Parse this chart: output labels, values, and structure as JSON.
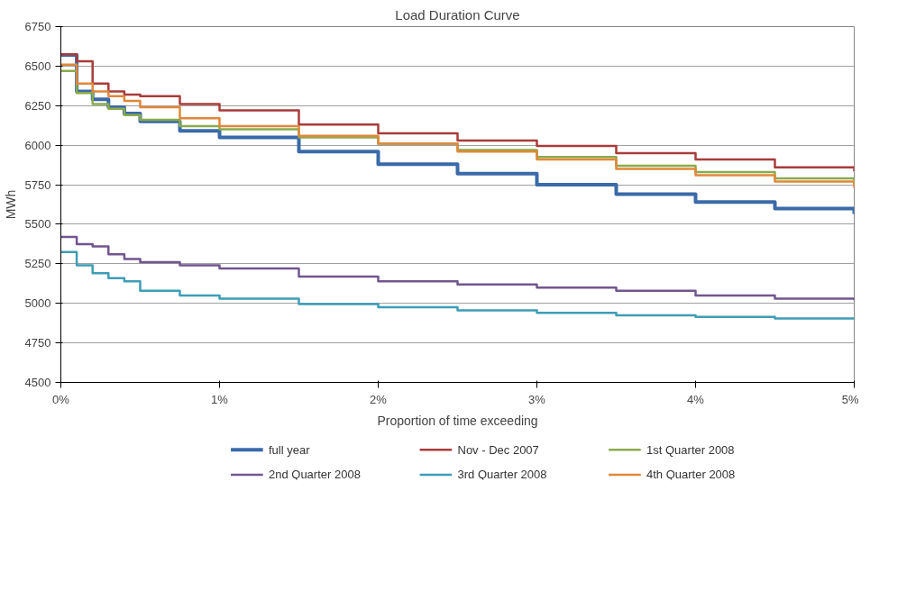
{
  "chart_data": {
    "type": "step",
    "title": "Load Duration Curve",
    "xlabel": "Proportion of time exceeding",
    "ylabel": "MWh",
    "x": [
      0,
      0.1,
      0.2,
      0.3,
      0.4,
      0.5,
      0.75,
      1,
      1.5,
      2,
      2.5,
      3,
      3.5,
      4,
      4.5,
      5
    ],
    "series": [
      {
        "name": "full year",
        "color": "#3a6aa8",
        "values": [
          6570,
          6340,
          6290,
          6240,
          6200,
          6150,
          6090,
          6050,
          5960,
          5880,
          5820,
          5750,
          5690,
          5640,
          5600,
          5565
        ]
      },
      {
        "name": "Nov - Dec 2007",
        "color": "#a83c3a",
        "values": [
          6575,
          6530,
          6390,
          6340,
          6320,
          6310,
          6260,
          6220,
          6130,
          6075,
          6030,
          5995,
          5950,
          5910,
          5860,
          5835
        ]
      },
      {
        "name": "1st Quarter 2008",
        "color": "#8aab4a",
        "values": [
          6470,
          6330,
          6260,
          6230,
          6190,
          6160,
          6120,
          6100,
          6050,
          6010,
          5970,
          5925,
          5870,
          5830,
          5790,
          5750
        ]
      },
      {
        "name": "2nd Quarter 2008",
        "color": "#71568f",
        "values": [
          5420,
          5375,
          5360,
          5310,
          5280,
          5260,
          5240,
          5220,
          5170,
          5140,
          5120,
          5100,
          5080,
          5050,
          5030,
          5020
        ]
      },
      {
        "name": "3rd Quarter 2008",
        "color": "#3e9db5",
        "values": [
          5325,
          5240,
          5190,
          5160,
          5140,
          5080,
          5050,
          5030,
          4995,
          4975,
          4955,
          4940,
          4925,
          4915,
          4905,
          4900
        ]
      },
      {
        "name": "4th Quarter 2008",
        "color": "#e0883a",
        "values": [
          6510,
          6390,
          6340,
          6310,
          6280,
          6240,
          6170,
          6120,
          6060,
          6010,
          5960,
          5910,
          5850,
          5810,
          5770,
          5730
        ]
      }
    ],
    "xlim": [
      0,
      5
    ],
    "ylim": [
      4500,
      6750
    ],
    "xticks": [
      {
        "value": 0,
        "label": "0%"
      },
      {
        "value": 1,
        "label": "1%"
      },
      {
        "value": 2,
        "label": "2%"
      },
      {
        "value": 3,
        "label": "3%"
      },
      {
        "value": 4,
        "label": "4%"
      },
      {
        "value": 5,
        "label": "5%"
      }
    ],
    "yticks": [
      4500,
      4750,
      5000,
      5250,
      5500,
      5750,
      6000,
      6250,
      6500,
      6750
    ],
    "grid": "y",
    "legend": "bottom",
    "marker": "none",
    "line_style": "solid"
  }
}
